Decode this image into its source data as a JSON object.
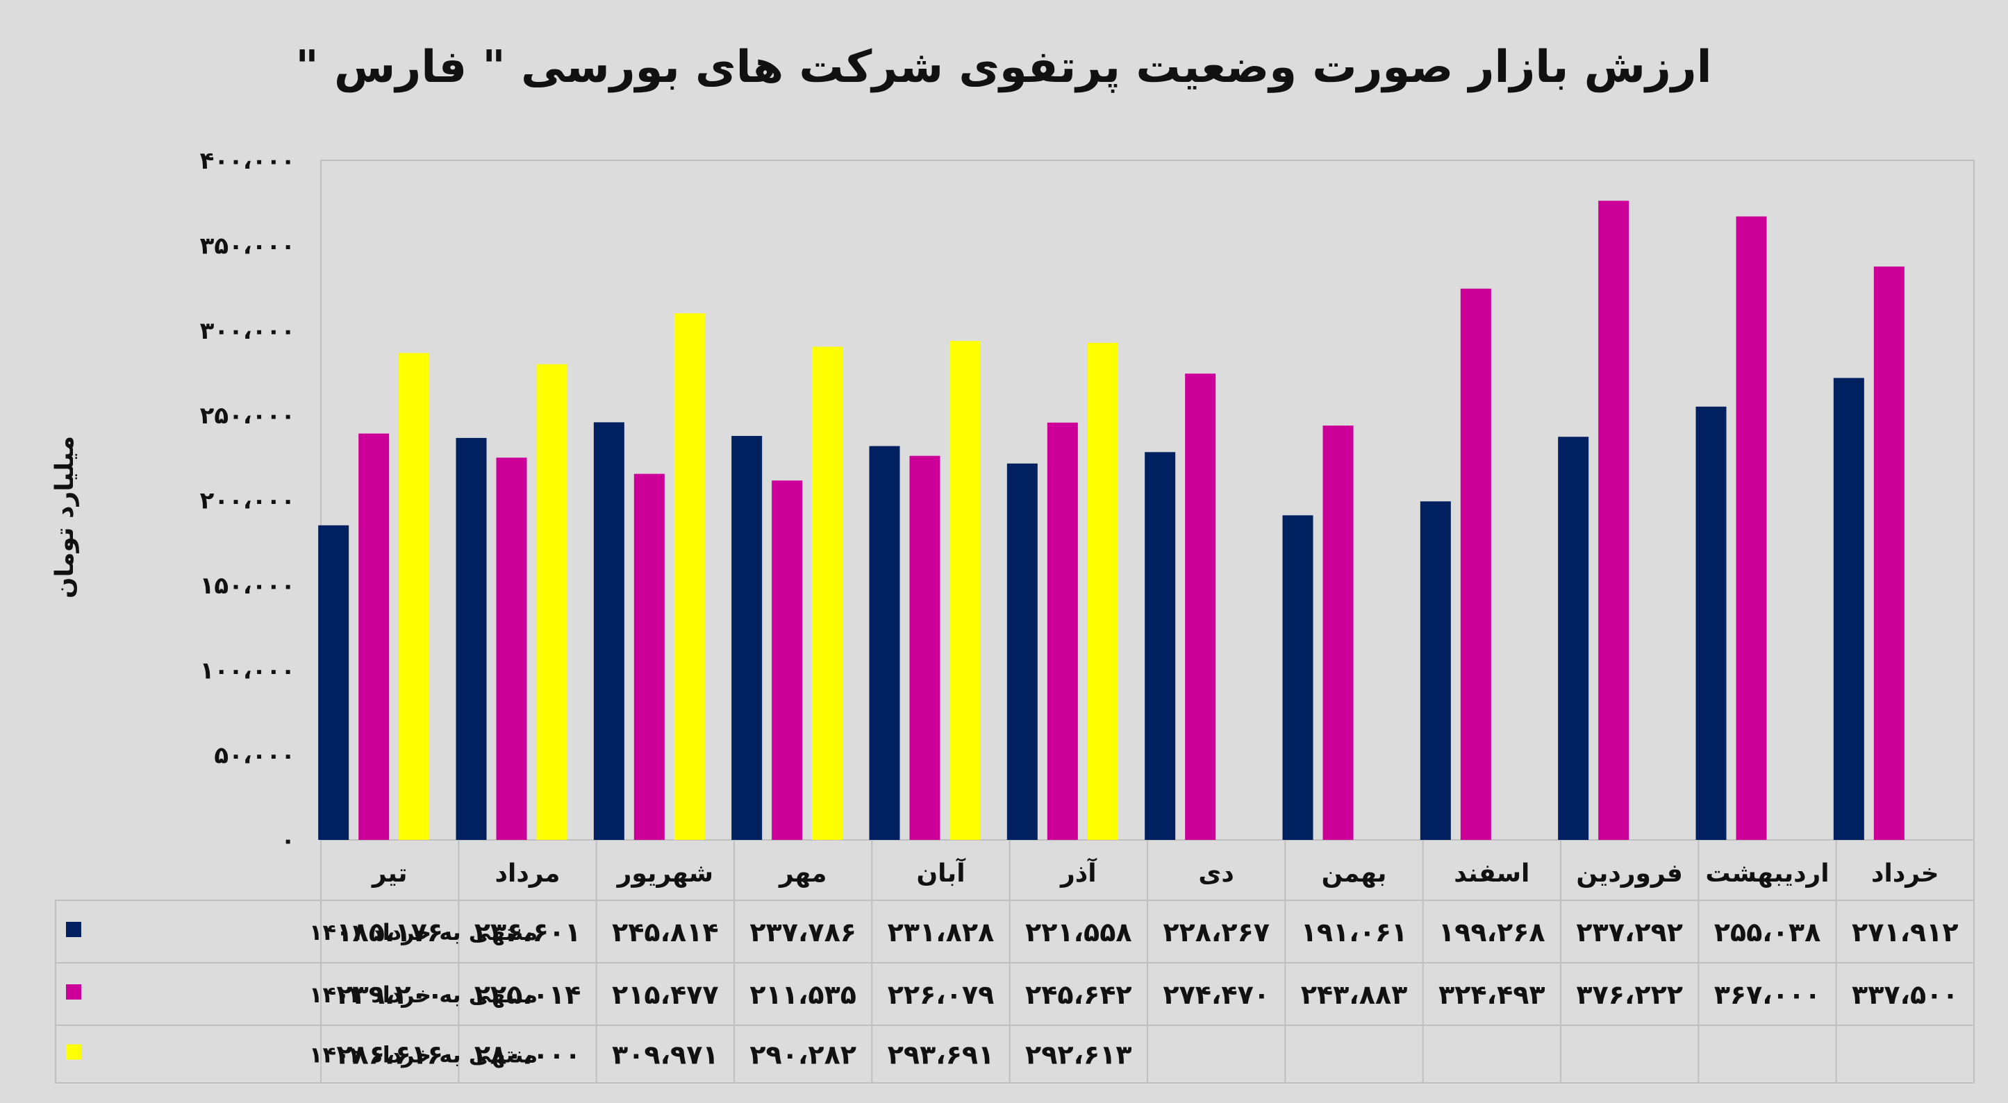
{
  "chart_data": {
    "type": "bar",
    "title": "ارزش بازار صورت وضعیت پرتفوی شرکت های بورسی \" فارس \"",
    "ylabel": "میلیارد تومان",
    "ylim": [
      0,
      400000
    ],
    "yticks": [
      "۰",
      "۵۰،۰۰۰",
      "۱۰۰،۰۰۰",
      "۱۵۰،۰۰۰",
      "۲۰۰،۰۰۰",
      "۲۵۰،۰۰۰",
      "۳۰۰،۰۰۰",
      "۳۵۰،۰۰۰",
      "۴۰۰،۰۰۰"
    ],
    "grid": false,
    "legend": "in data table, left",
    "categories": [
      "تیر",
      "مرداد",
      "شهریور",
      "مهر",
      "آبان",
      "آذر",
      "دی",
      "بهمن",
      "اسفند",
      "فروردین",
      "اردیبهشت",
      "خرداد"
    ],
    "series": [
      {
        "name": "منتهی به خرداد ۱۴۰۱",
        "color": "#002060",
        "values": [
          185176,
          236601,
          245814,
          237786,
          231828,
          221558,
          228267,
          191061,
          199268,
          237292,
          255038,
          271912
        ],
        "labels": [
          "۱۸۵،۱۷۶",
          "۲۳۶،۶۰۱",
          "۲۴۵،۸۱۴",
          "۲۳۷،۷۸۶",
          "۲۳۱،۸۲۸",
          "۲۲۱،۵۵۸",
          "۲۲۸،۲۶۷",
          "۱۹۱،۰۶۱",
          "۱۹۹،۲۶۸",
          "۲۳۷،۲۹۲",
          "۲۵۵،۰۳۸",
          "۲۷۱،۹۱۲"
        ]
      },
      {
        "name": "منتهی به خرداد ۱۴۰۲",
        "color": "#CC0099",
        "values": [
          239200,
          225014,
          215477,
          211535,
          226079,
          245642,
          274470,
          243883,
          324493,
          376222,
          367000,
          337500
        ],
        "labels": [
          "۲۳۹،۲۰۰",
          "۲۲۵،۰۱۴",
          "۲۱۵،۴۷۷",
          "۲۱۱،۵۳۵",
          "۲۲۶،۰۷۹",
          "۲۴۵،۶۴۲",
          "۲۷۴،۴۷۰",
          "۲۴۳،۸۸۳",
          "۳۲۴،۴۹۳",
          "۳۷۶،۲۲۲",
          "۳۶۷،۰۰۰",
          "۳۳۷،۵۰۰"
        ]
      },
      {
        "name": "منتهی به خرداد ۱۴۰۲",
        "color": "#FFFF00",
        "values": [
          286616,
          280000,
          309971,
          290282,
          293691,
          292613,
          null,
          null,
          null,
          null,
          null,
          null
        ],
        "labels": [
          "۲۸۶،۶۱۶",
          "۲۸۰،۰۰۰",
          "۳۰۹،۹۷۱",
          "۲۹۰،۲۸۲",
          "۲۹۳،۶۹۱",
          "۲۹۲،۶۱۳",
          "",
          "",
          "",
          "",
          "",
          ""
        ]
      }
    ]
  }
}
